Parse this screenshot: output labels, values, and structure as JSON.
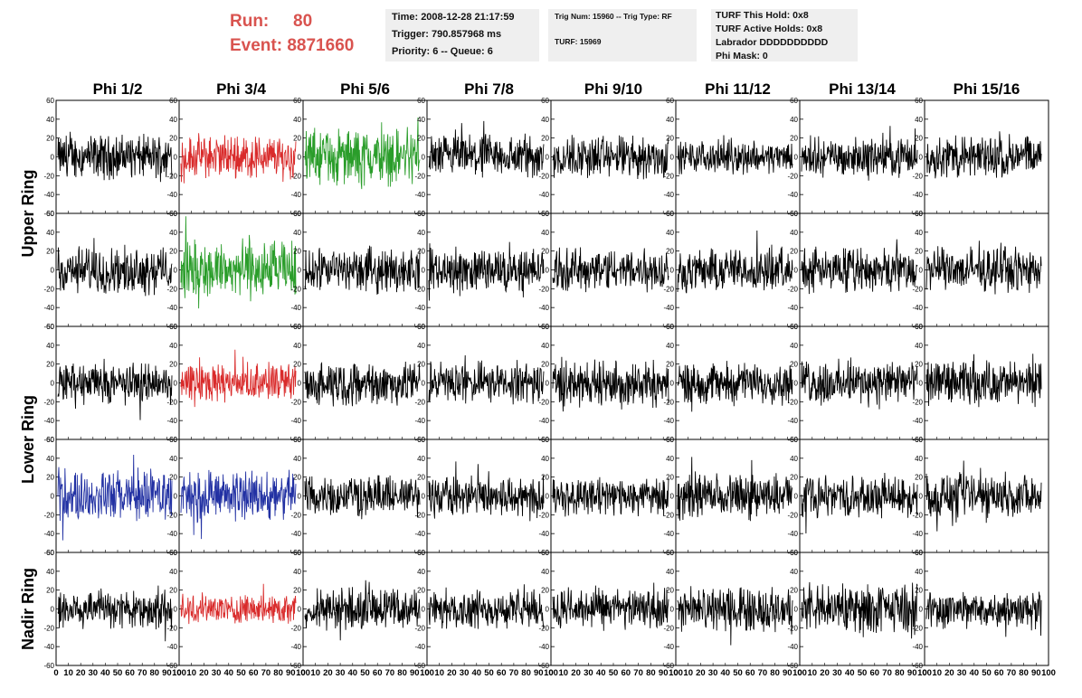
{
  "header": {
    "run_label": "Run:",
    "run_value": "80",
    "event_label": "Event:",
    "event_value": "8871660"
  },
  "info_time": {
    "time": "Time: 2008-12-28 21:17:59",
    "trigger": "Trigger: 790.857968 ms",
    "priority": "Priority: 6 -- Queue: 6"
  },
  "info_trig": {
    "trig": "Trig Num: 15960 -- Trig Type: RF",
    "turf": "TURF: 15969"
  },
  "info_turf": {
    "hold": "TURF This Hold: 0x8",
    "active": "TURF Active Holds: 0x8",
    "labrador": "Labrador DDDDDDDDDD",
    "phimask": "Phi Mask: 0"
  },
  "colors": {
    "default": "#000000",
    "red": "#d92b2b",
    "green": "#2a9d2a",
    "blue": "#2231a3",
    "header_accent": "#d9534f"
  },
  "chart_data": {
    "type": "line",
    "columns": [
      "Phi 1/2",
      "Phi 3/4",
      "Phi 5/6",
      "Phi 7/8",
      "Phi 9/10",
      "Phi 11/12",
      "Phi 13/14",
      "Phi 15/16"
    ],
    "row_labels": [
      "Upper Ring",
      "Lower Ring",
      "Nadir Ring"
    ],
    "x_ticks": [
      "0",
      "10",
      "20",
      "30",
      "40",
      "50",
      "60",
      "70",
      "80",
      "90",
      "100"
    ],
    "y_ticks": [
      "60",
      "40",
      "20",
      "0",
      "-20",
      "-40",
      "-60"
    ],
    "xlim": [
      0,
      100
    ],
    "ylim": [
      -60,
      60
    ],
    "panels_rows": 5,
    "panel_colors": [
      [
        "black",
        "red",
        "green",
        "black",
        "black",
        "black",
        "black",
        "black"
      ],
      [
        "black",
        "green",
        "black",
        "black",
        "black",
        "black",
        "black",
        "black"
      ],
      [
        "black",
        "red",
        "black",
        "black",
        "black",
        "black",
        "black",
        "black"
      ],
      [
        "blue",
        "blue",
        "black",
        "black",
        "black",
        "black",
        "black",
        "black"
      ],
      [
        "black",
        "red",
        "black",
        "black",
        "black",
        "black",
        "black",
        "black"
      ]
    ],
    "amplitude": [
      [
        30,
        30,
        38,
        30,
        30,
        22,
        26,
        30
      ],
      [
        32,
        40,
        30,
        30,
        30,
        30,
        30,
        30
      ],
      [
        28,
        26,
        30,
        28,
        32,
        28,
        30,
        30
      ],
      [
        35,
        35,
        28,
        28,
        26,
        30,
        28,
        30
      ],
      [
        28,
        20,
        28,
        26,
        28,
        30,
        34,
        26
      ]
    ],
    "samples": 260
  }
}
